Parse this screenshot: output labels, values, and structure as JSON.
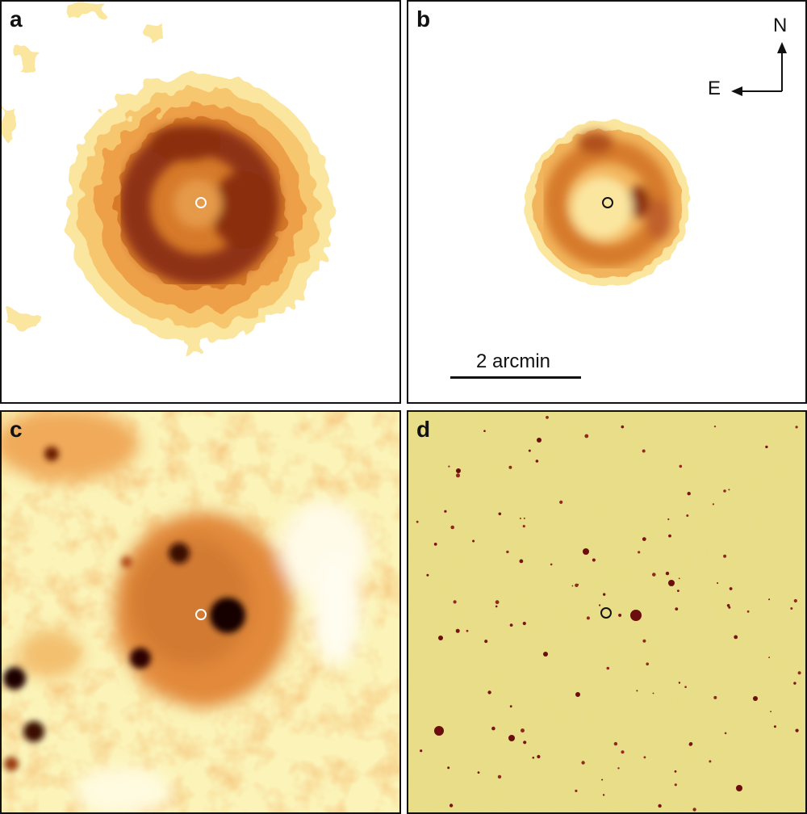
{
  "panels": [
    {
      "label": "a"
    },
    {
      "label": "b"
    },
    {
      "label": "c"
    },
    {
      "label": "d"
    }
  ],
  "scale_bar": {
    "text": "2 arcmin"
  },
  "compass": {
    "north": "N",
    "east": "E"
  },
  "colors": {
    "background_pale": "#fbf3b8",
    "mid_orange": "#e8913a",
    "deep_brown": "#8a2d10",
    "star_core": "#140000",
    "field_yellow": "#eadf86",
    "star_dark_red": "#6b0d0d"
  }
}
